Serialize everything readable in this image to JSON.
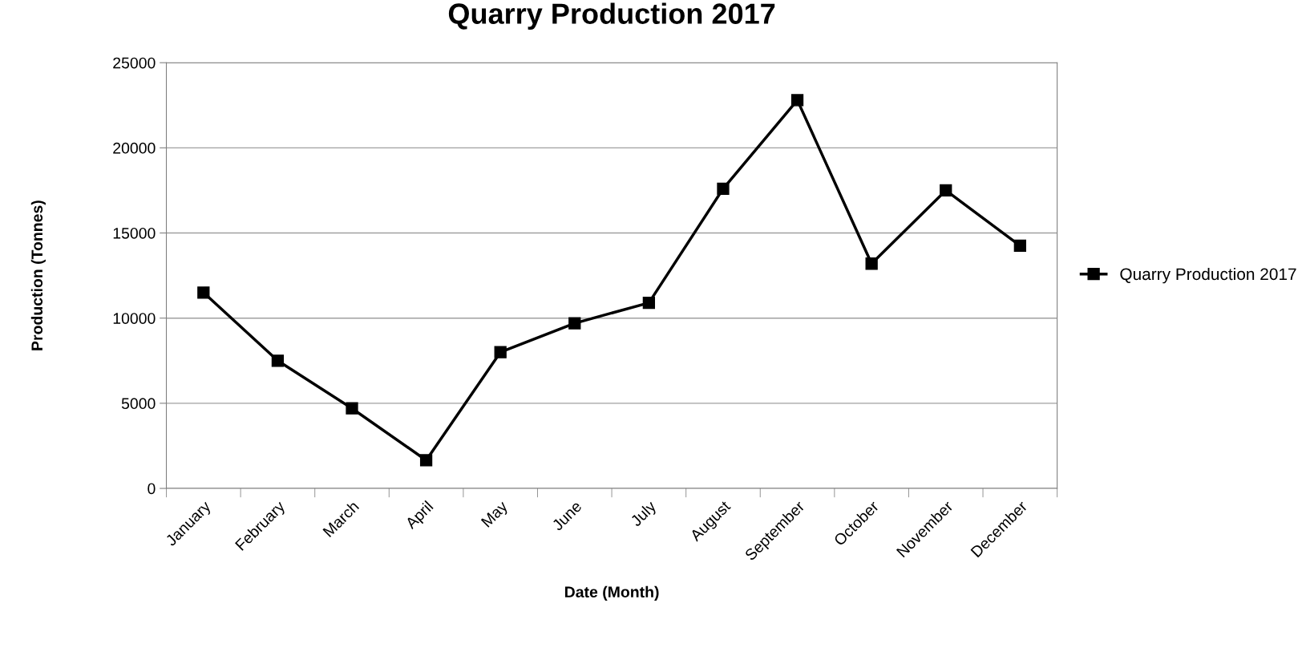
{
  "chart_data": {
    "type": "line",
    "title": "Quarry Production 2017",
    "xlabel": "Date (Month)",
    "ylabel": "Production (Tonnes)",
    "categories": [
      "January",
      "February",
      "March",
      "April",
      "May",
      "June",
      "July",
      "August",
      "September",
      "October",
      "November",
      "December"
    ],
    "series": [
      {
        "name": "Quarry Production 2017",
        "color": "#000000",
        "values": [
          11500,
          7500,
          4700,
          1650,
          8000,
          9700,
          10900,
          17600,
          22800,
          13200,
          17500,
          14250
        ]
      }
    ],
    "ylim": [
      0,
      25000
    ],
    "yticks": [
      0,
      5000,
      10000,
      15000,
      20000,
      25000
    ],
    "grid": "y",
    "legend": "right",
    "marker": "square",
    "line_style": "solid"
  }
}
